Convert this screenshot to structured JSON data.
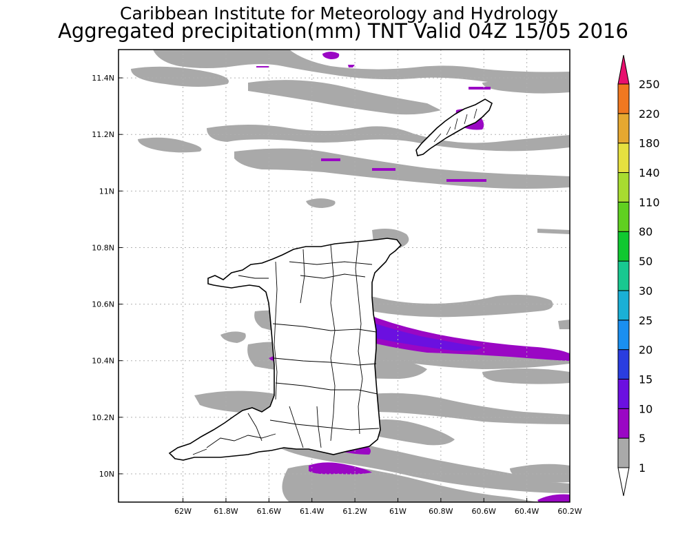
{
  "header": {
    "line1": "Caribbean Institute for Meteorology and Hydrology",
    "line2": "Aggregated precipitation(mm) TNT Valid 04Z 15/05 2016"
  },
  "map": {
    "lon_range": [
      -62.3,
      -60.2
    ],
    "lat_range": [
      9.9,
      11.5
    ],
    "lon_ticks": [
      "62W",
      "61.8W",
      "61.6W",
      "61.4W",
      "61.2W",
      "61W",
      "60.8W",
      "60.6W",
      "60.4W",
      "60.2W"
    ],
    "lon_tick_values": [
      -62.0,
      -61.8,
      -61.6,
      -61.4,
      -61.2,
      -61.0,
      -60.8,
      -60.6,
      -60.4,
      -60.2
    ],
    "lat_ticks": [
      "10N",
      "10.2N",
      "10.4N",
      "10.6N",
      "10.8N",
      "11N",
      "11.2N",
      "11.4N"
    ],
    "lat_tick_values": [
      10.0,
      10.2,
      10.4,
      10.6,
      10.8,
      11.0,
      11.2,
      11.4
    ],
    "grid": true
  },
  "legend": {
    "position": "right",
    "levels": [
      "1",
      "5",
      "10",
      "15",
      "20",
      "25",
      "30",
      "50",
      "80",
      "110",
      "140",
      "180",
      "220",
      "250"
    ],
    "colors": [
      "#a9a9a9",
      "#9a07c4",
      "#6b10e0",
      "#2a3de0",
      "#1a8ff0",
      "#1ab0d6",
      "#18c890",
      "#10c830",
      "#60d020",
      "#a8dc30",
      "#e6e040",
      "#e6a830",
      "#f07820",
      "#f03c3c",
      "#e8106e"
    ],
    "colors_note_under": "#ffffff"
  },
  "colors": {
    "rain_1_5": "#a9a9a9",
    "rain_5_10": "#9a07c4",
    "rain_10_15": "#6b10e0",
    "coastline": "#000000",
    "grid": "#b0b0b0"
  }
}
